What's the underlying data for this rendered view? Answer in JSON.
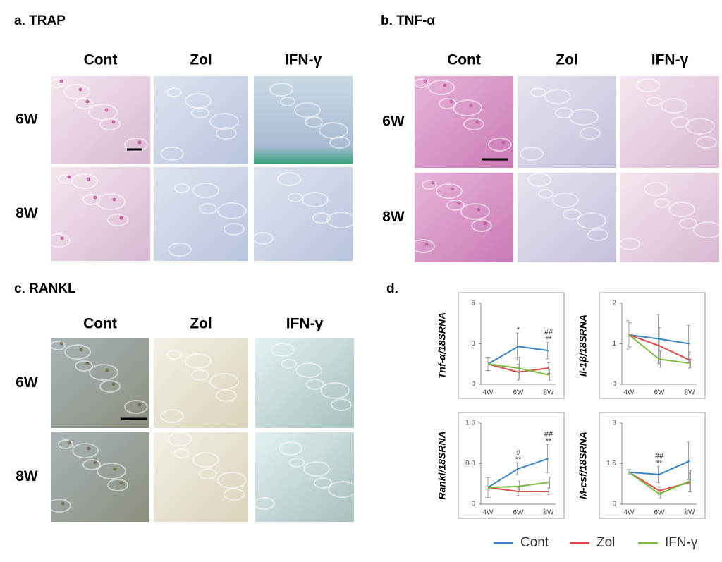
{
  "panels": {
    "a": {
      "title": "a. TRAP",
      "columns": [
        "Cont",
        "Zol",
        "IFN-γ"
      ],
      "rows": [
        "6W",
        "8W"
      ]
    },
    "b": {
      "title": "b. TNF-α",
      "columns": [
        "Cont",
        "Zol",
        "IFN-γ"
      ],
      "rows": [
        "6W",
        "8W"
      ]
    },
    "c": {
      "title": "c. RANKL",
      "columns": [
        "Cont",
        "Zol",
        "IFN-γ"
      ],
      "rows": [
        "6W",
        "8W"
      ]
    },
    "d": {
      "title": "d."
    }
  },
  "chart_data": [
    {
      "type": "line",
      "y_label": "Tnf-α/18SRNA",
      "categories": [
        "4W",
        "6W",
        "8W"
      ],
      "ylim": [
        0,
        6
      ],
      "yticks": [
        0,
        3,
        6
      ],
      "series": [
        {
          "name": "Cont",
          "color": "#3a87c8",
          "values": [
            1.5,
            2.8,
            2.5
          ],
          "errors": [
            0.5,
            1.0,
            0.6
          ]
        },
        {
          "name": "Zol",
          "color": "#e0484a",
          "values": [
            1.5,
            0.9,
            1.2
          ],
          "errors": [
            0.5,
            0.6,
            0.4
          ]
        },
        {
          "name": "IFN-γ",
          "color": "#7cbf3f",
          "values": [
            1.5,
            1.2,
            0.7
          ],
          "errors": [
            0.5,
            0.8,
            0.4
          ]
        }
      ],
      "annotations": [
        {
          "x": "6W",
          "text": [
            "*"
          ]
        },
        {
          "x": "8W",
          "text": [
            "##",
            "**"
          ]
        }
      ]
    },
    {
      "type": "line",
      "y_label": "Il-1β/18SRNA",
      "categories": [
        "4W",
        "6W",
        "8W"
      ],
      "ylim": [
        0,
        2
      ],
      "yticks": [
        0,
        1,
        2
      ],
      "series": [
        {
          "name": "Cont",
          "color": "#3a87c8",
          "values": [
            1.22,
            1.12,
            1.0
          ],
          "errors": [
            0.35,
            0.6,
            0.45
          ]
        },
        {
          "name": "Zol",
          "color": "#e0484a",
          "values": [
            1.22,
            0.95,
            0.6
          ],
          "errors": [
            0.3,
            0.45,
            0.2
          ]
        },
        {
          "name": "IFN-γ",
          "color": "#7cbf3f",
          "values": [
            1.22,
            0.62,
            0.52
          ],
          "errors": [
            0.3,
            0.2,
            0.1
          ]
        }
      ],
      "annotations": []
    },
    {
      "type": "line",
      "y_label": "Rankl/18SRNA",
      "categories": [
        "4W",
        "6W",
        "8W"
      ],
      "ylim": [
        0,
        1.6
      ],
      "yticks": [
        0,
        0.8,
        1.6
      ],
      "series": [
        {
          "name": "Cont",
          "color": "#3a87c8",
          "values": [
            0.33,
            0.7,
            0.9
          ],
          "errors": [
            0.2,
            0.12,
            0.28
          ]
        },
        {
          "name": "Zol",
          "color": "#e0484a",
          "values": [
            0.33,
            0.25,
            0.25
          ],
          "errors": [
            0.2,
            0.08,
            0.06
          ]
        },
        {
          "name": "IFN-γ",
          "color": "#7cbf3f",
          "values": [
            0.33,
            0.35,
            0.43
          ],
          "errors": [
            0.2,
            0.1,
            0.1
          ]
        }
      ],
      "annotations": [
        {
          "x": "6W",
          "text": [
            "#",
            "**"
          ]
        },
        {
          "x": "8W",
          "text": [
            "##",
            "**"
          ]
        }
      ]
    },
    {
      "type": "line",
      "y_label": "M-csf/18SRNA",
      "categories": [
        "4W",
        "6W",
        "8W"
      ],
      "ylim": [
        0,
        3
      ],
      "yticks": [
        0,
        1.5,
        3
      ],
      "series": [
        {
          "name": "Cont",
          "color": "#3a87c8",
          "values": [
            1.18,
            1.1,
            1.6
          ],
          "errors": [
            0.1,
            0.3,
            0.7
          ]
        },
        {
          "name": "Zol",
          "color": "#e0484a",
          "values": [
            1.18,
            0.5,
            0.8
          ],
          "errors": [
            0.1,
            0.15,
            0.35
          ]
        },
        {
          "name": "IFN-γ",
          "color": "#7cbf3f",
          "values": [
            1.18,
            0.38,
            0.85
          ],
          "errors": [
            0.1,
            0.15,
            0.4
          ]
        }
      ],
      "annotations": [
        {
          "x": "6W",
          "text": [
            "##",
            "**"
          ]
        }
      ]
    }
  ]
}
